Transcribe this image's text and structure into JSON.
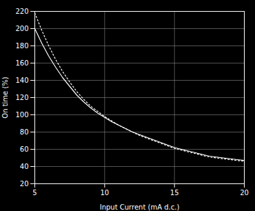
{
  "chart_data": {
    "type": "line",
    "xlabel": "Input Current (mA d.c.)",
    "ylabel": "On time (%)",
    "x": [
      5.0,
      5.5,
      6.0,
      6.5,
      7.0,
      7.5,
      8.0,
      8.5,
      9.0,
      9.5,
      10.0,
      10.5,
      11.0,
      11.5,
      12.0,
      12.5,
      13.0,
      13.5,
      14.0,
      14.5,
      15.0,
      15.5,
      16.0,
      16.5,
      17.0,
      17.5,
      18.0,
      18.5,
      19.0,
      19.5,
      20.0
    ],
    "series": [
      {
        "color": "#ffffff",
        "line_style": "solid",
        "values": [
          200,
          183,
          168,
          155,
          143,
          133,
          123,
          115,
          108,
          102,
          97,
          92,
          88,
          84,
          80,
          77,
          74,
          71,
          68,
          65,
          62,
          60,
          58,
          56,
          54,
          52,
          51,
          50,
          49,
          48,
          47
        ]
      },
      {
        "color": "#ffffff",
        "line_style": "dotted",
        "values": [
          218,
          198,
          180,
          164,
          150,
          138,
          127,
          118,
          110,
          104,
          98,
          93,
          88,
          84,
          80,
          76,
          73,
          70,
          67,
          64,
          61,
          59,
          57,
          55,
          53,
          51,
          50,
          49,
          48,
          47,
          46
        ]
      }
    ],
    "xlim": [
      5,
      20
    ],
    "ylim": [
      20,
      220
    ],
    "xticks": [
      5,
      10,
      15,
      20
    ],
    "yticks": [
      20,
      40,
      60,
      80,
      100,
      120,
      140,
      160,
      180,
      200,
      220
    ],
    "grid": true
  }
}
